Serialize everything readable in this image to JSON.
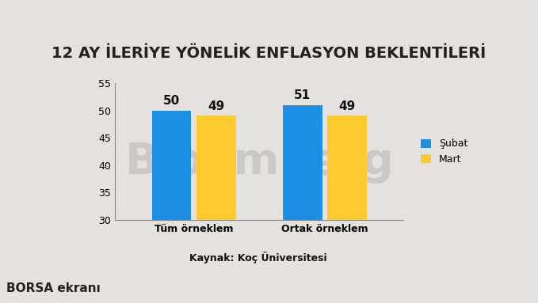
{
  "chart_data": {
    "type": "bar",
    "title": "12 AY İLERİYE YÖNELİK ENFLASYON BEKLENTİLERİ",
    "source": "Kaynak: Koç Üniversitesi",
    "annotations": [
      "Bloomberg",
      "BORSA ekranı"
    ],
    "categories": [
      "Tüm örneklem",
      "Ortak örneklem"
    ],
    "series": [
      {
        "name": "Şubat",
        "color": "#1a8fe3",
        "values": [
          50,
          51
        ]
      },
      {
        "name": "Mart",
        "color": "#fcc92f",
        "values": [
          49,
          49
        ]
      }
    ],
    "ylim": [
      30,
      55
    ],
    "yticks": [
      30,
      35,
      40,
      45,
      50,
      55
    ],
    "grid": false,
    "legend": "right",
    "data_labels": true
  }
}
